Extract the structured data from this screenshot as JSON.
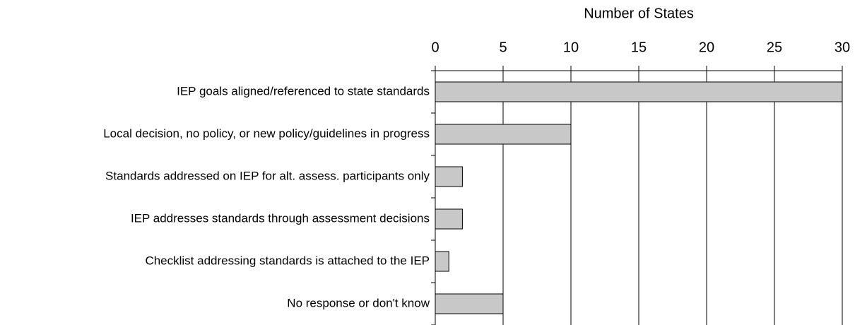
{
  "chart_data": {
    "type": "bar",
    "orientation": "horizontal",
    "x_label": "Number of States",
    "categories": [
      "IEP goals aligned/referenced to state standards",
      "Local decision, no policy, or new policy/guidelines in progress",
      "Standards addressed on IEP for alt. assess. participants only",
      "IEP addresses standards through assessment decisions",
      "Checklist addressing standards is attached to the IEP",
      "No response or don't know"
    ],
    "values": [
      30,
      10,
      2,
      2,
      1,
      5
    ],
    "color": "#c8c8c8",
    "xlim": [
      0,
      30
    ],
    "xticks": [
      0,
      5,
      10,
      15,
      20,
      25,
      30
    ],
    "grid": true
  }
}
